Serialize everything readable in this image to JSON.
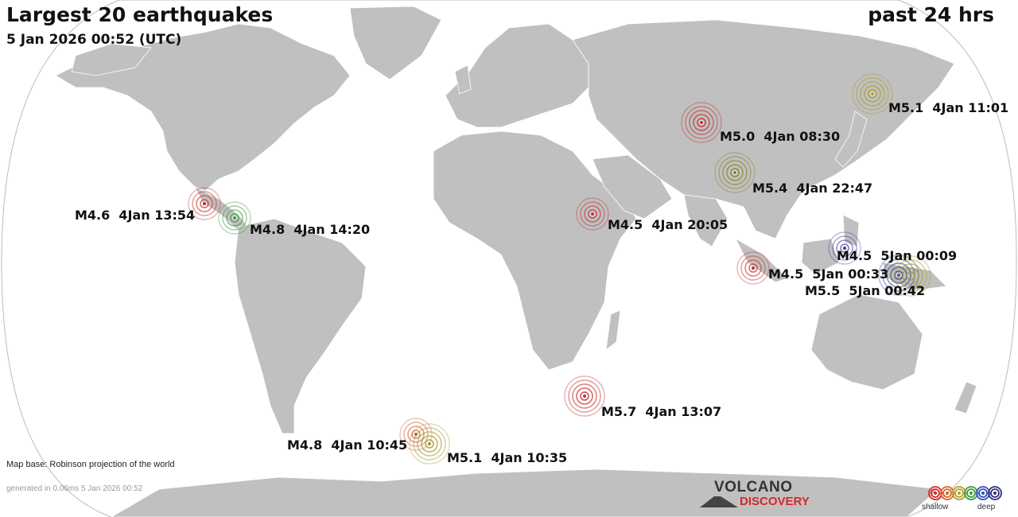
{
  "header": {
    "title": "Largest 20 earthquakes",
    "timestamp": "5 Jan 2026 00:52 (UTC)",
    "period": "past 24 hrs"
  },
  "footer": {
    "map_base": "Map base: Robinson projection of the world",
    "generated": "generated in 0.06ms  5 Jan 2026 00:52"
  },
  "logo": {
    "line1": "VOLCANO",
    "line2": "DISCOVERY"
  },
  "legend": {
    "shallow_label": "shallow",
    "deep_label": "deep",
    "colors": [
      "#d62828",
      "#d9662a",
      "#b0a020",
      "#3a9a3a",
      "#3050c0",
      "#303080"
    ]
  },
  "colors": {
    "land": "#c0c0c0",
    "ocean": "#ffffff",
    "border": "#ffffff",
    "outline": "#bbbbbb"
  },
  "earthquakes": [
    {
      "magnitude": "M5.1",
      "time": "4Jan 11:01",
      "label": "M5.1  4Jan 11:01",
      "depth_class": "mid",
      "color": "#a89a30"
    },
    {
      "magnitude": "M5.0",
      "time": "4Jan 08:30",
      "label": "M5.0  4Jan 08:30",
      "depth_class": "shallow",
      "color": "#c43030"
    },
    {
      "magnitude": "M5.4",
      "time": "4Jan 22:47",
      "label": "M5.4  4Jan 22:47",
      "depth_class": "mid",
      "color": "#8a8020"
    },
    {
      "magnitude": "M4.6",
      "time": "4Jan 13:54",
      "label": "M4.6  4Jan 13:54",
      "depth_class": "shallow",
      "color": "#c43030"
    },
    {
      "magnitude": "M4.8",
      "time": "4Jan 14:20",
      "label": "M4.8  4Jan 14:20",
      "depth_class": "intermediate",
      "color": "#3a9a3a"
    },
    {
      "magnitude": "M4.5",
      "time": "4Jan 20:05",
      "label": "M4.5  4Jan 20:05",
      "depth_class": "shallow",
      "color": "#c43030"
    },
    {
      "magnitude": "M4.5",
      "time": "5Jan 00:09",
      "label": "M4.5  5Jan 00:09",
      "depth_class": "deep",
      "color": "#4a40a0"
    },
    {
      "magnitude": "M4.5",
      "time": "5Jan 00:33",
      "label": "M4.5  5Jan 00:33",
      "depth_class": "shallow",
      "color": "#c43030"
    },
    {
      "magnitude": "M5.5",
      "time": "5Jan 00:42",
      "label": "M5.5  5Jan 00:42",
      "depth_class": "deep",
      "color": "#3040a0"
    },
    {
      "magnitude": "M5.7",
      "time": "4Jan 13:07",
      "label": "M5.7  4Jan 13:07",
      "depth_class": "shallow",
      "color": "#c43030"
    },
    {
      "magnitude": "M4.8",
      "time": "4Jan 10:45",
      "label": "M4.8  4Jan 10:45",
      "depth_class": "shallow",
      "color": "#d05a2a"
    },
    {
      "magnitude": "M5.1",
      "time": "4Jan 10:35",
      "label": "M5.1  4Jan 10:35",
      "depth_class": "mid",
      "color": "#a89a30"
    }
  ]
}
